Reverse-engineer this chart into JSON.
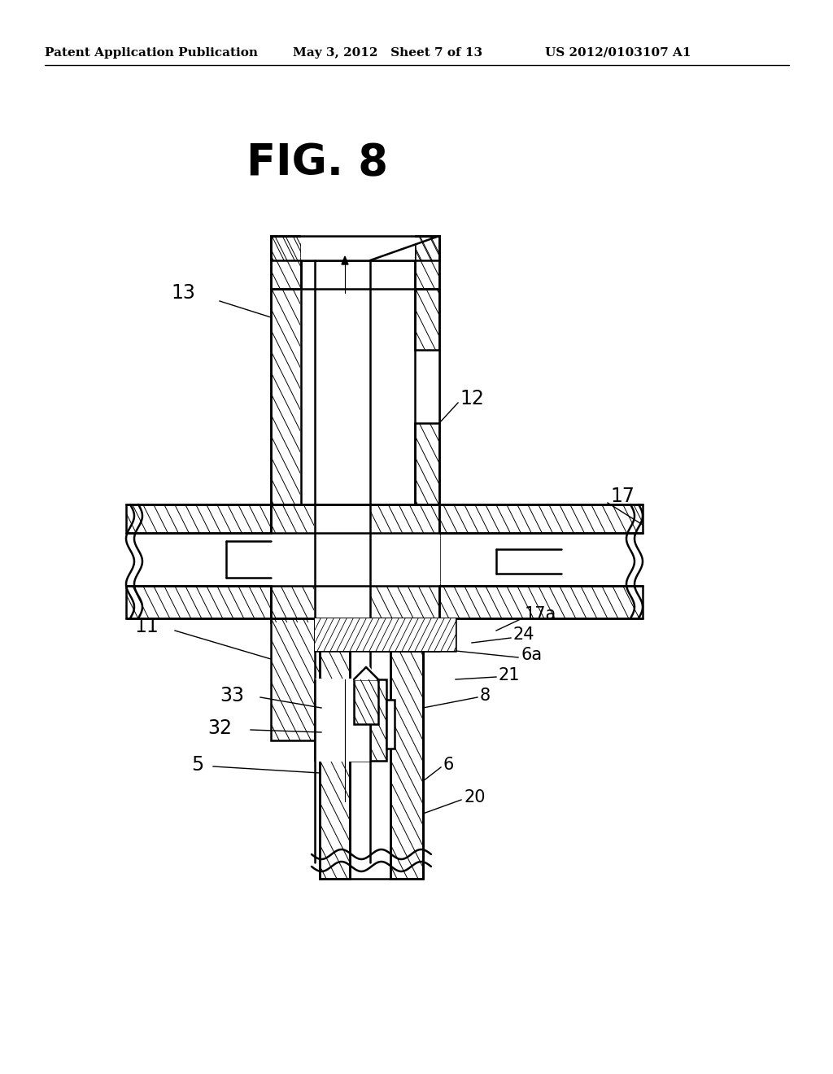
{
  "bg_color": "#ffffff",
  "header_left": "Patent Application Publication",
  "header_mid": "May 3, 2012   Sheet 7 of 13",
  "header_right": "US 2012/0103107 A1",
  "fig_title": "FIG. 8"
}
